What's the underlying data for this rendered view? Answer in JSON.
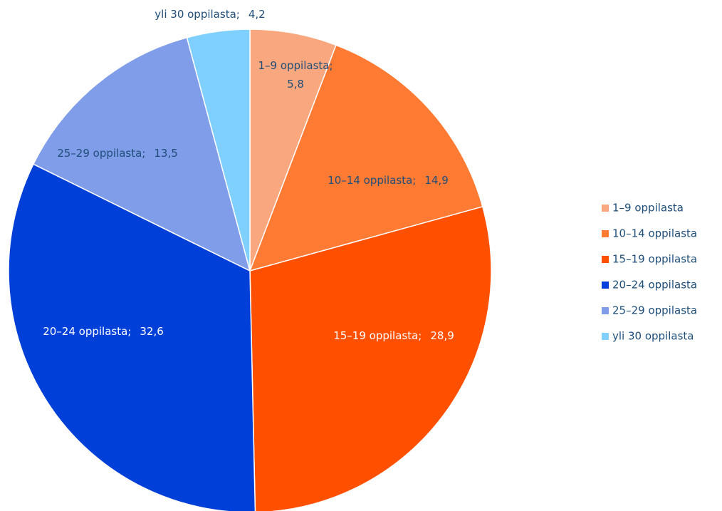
{
  "chart_data": {
    "type": "pie",
    "categories": [
      "1–9 oppilasta",
      "10–14 oppilasta",
      "15–19 oppilasta",
      "20–24 oppilasta",
      "25–29 oppilasta",
      "yli 30 oppilasta"
    ],
    "values": [
      5.8,
      14.9,
      28.9,
      32.6,
      13.5,
      4.2
    ],
    "value_labels": [
      "5,8",
      "14,9",
      "28,9",
      "32,6",
      "13,5",
      "4,2"
    ],
    "label_separator": ";",
    "colors": [
      "#f9a77e",
      "#ff7a33",
      "#ff5000",
      "#0040d8",
      "#7f9de8",
      "#80d0ff"
    ],
    "legend": "right"
  }
}
